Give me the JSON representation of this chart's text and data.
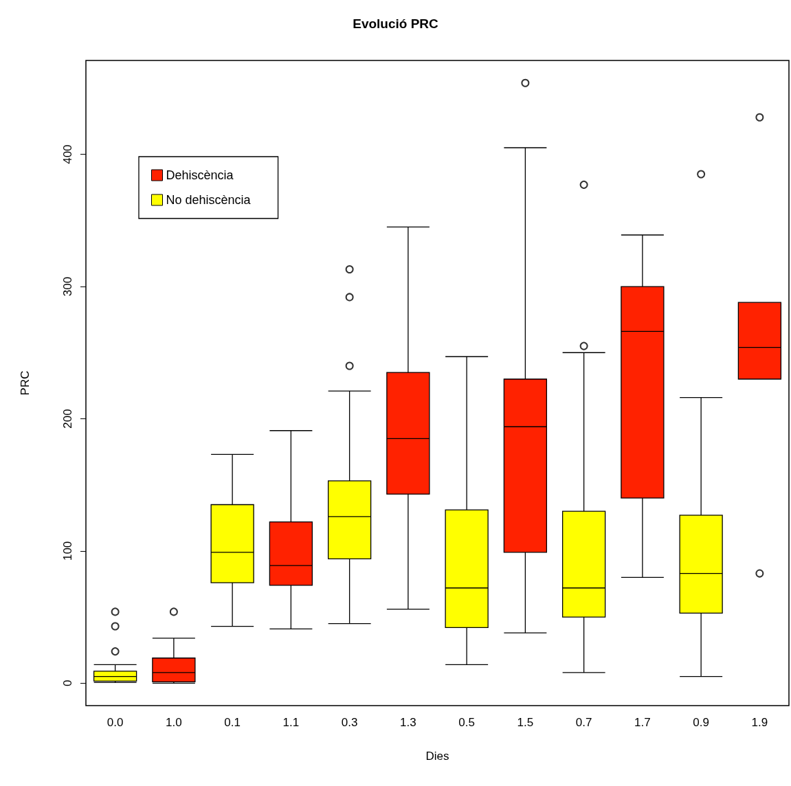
{
  "chart_data": {
    "type": "box",
    "title": "Evolució PRC",
    "xlabel": "Dies",
    "ylabel": "PRC",
    "categories": [
      "0.0",
      "1.0",
      "0.1",
      "1.1",
      "0.3",
      "1.3",
      "0.5",
      "1.5",
      "0.7",
      "1.7",
      "0.9",
      "1.9"
    ],
    "series": [
      {
        "name": "Dehiscència",
        "color": "#ff2200",
        "boxes": [
          null,
          {
            "low": 0,
            "q1": 1,
            "median": 8,
            "q3": 19,
            "high": 34,
            "outliers": [
              54
            ]
          },
          null,
          {
            "low": 41,
            "q1": 74,
            "median": 89,
            "q3": 122,
            "high": 191
          },
          null,
          {
            "low": 56,
            "q1": 143,
            "median": 185,
            "q3": 235,
            "high": 345
          },
          null,
          {
            "low": 38,
            "q1": 99,
            "median": 194,
            "q3": 230,
            "high": 405,
            "outliers": [
              454
            ]
          },
          null,
          {
            "low": 80,
            "q1": 140,
            "median": 266,
            "q3": 300,
            "high": 339
          },
          null,
          {
            "low": 230,
            "q1": 230,
            "median": 254,
            "q3": 288,
            "high": 288,
            "outliers": [
              83,
              428
            ]
          }
        ]
      },
      {
        "name": "No dehiscència",
        "color": "#ffff00",
        "boxes": [
          {
            "low": 0.5,
            "q1": 1.5,
            "median": 5,
            "q3": 9,
            "high": 14,
            "outliers": [
              24,
              43,
              54
            ]
          },
          null,
          {
            "low": 43,
            "q1": 76,
            "median": 99,
            "q3": 135,
            "high": 173
          },
          null,
          {
            "low": 45,
            "q1": 94,
            "median": 126,
            "q3": 153,
            "high": 221,
            "outliers": [
              240,
              292,
              313
            ]
          },
          null,
          {
            "low": 14,
            "q1": 42,
            "median": 72,
            "q3": 131,
            "high": 247
          },
          null,
          {
            "low": 8,
            "q1": 50,
            "median": 72,
            "q3": 130,
            "high": 250,
            "outliers": [
              255,
              377
            ]
          },
          null,
          {
            "low": 5,
            "q1": 53,
            "median": 83,
            "q3": 127,
            "high": 216,
            "outliers": [
              385
            ]
          },
          null
        ]
      }
    ],
    "ylim": [
      -17,
      471
    ],
    "yticks": [
      0,
      100,
      200,
      300,
      400
    ],
    "legend": "top left",
    "grid": false
  }
}
